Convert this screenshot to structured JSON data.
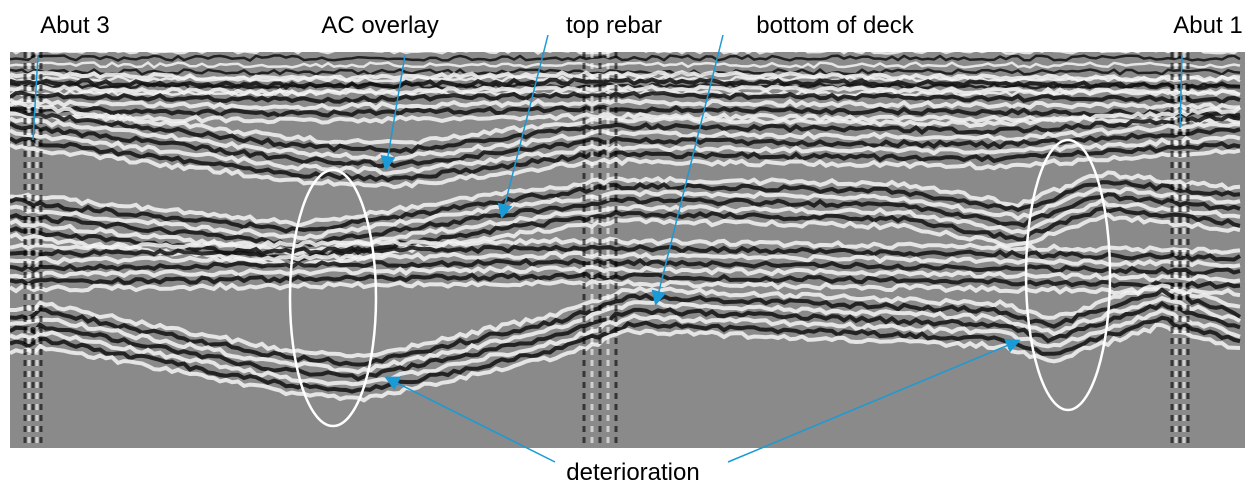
{
  "labels": {
    "abut_3": "Abut 3",
    "ac_overlay": "AC overlay",
    "top_rebar": "top rebar",
    "bottom_of_deck": "bottom of deck",
    "abut_1": "Abut 1",
    "deterioration": "deterioration"
  }
}
